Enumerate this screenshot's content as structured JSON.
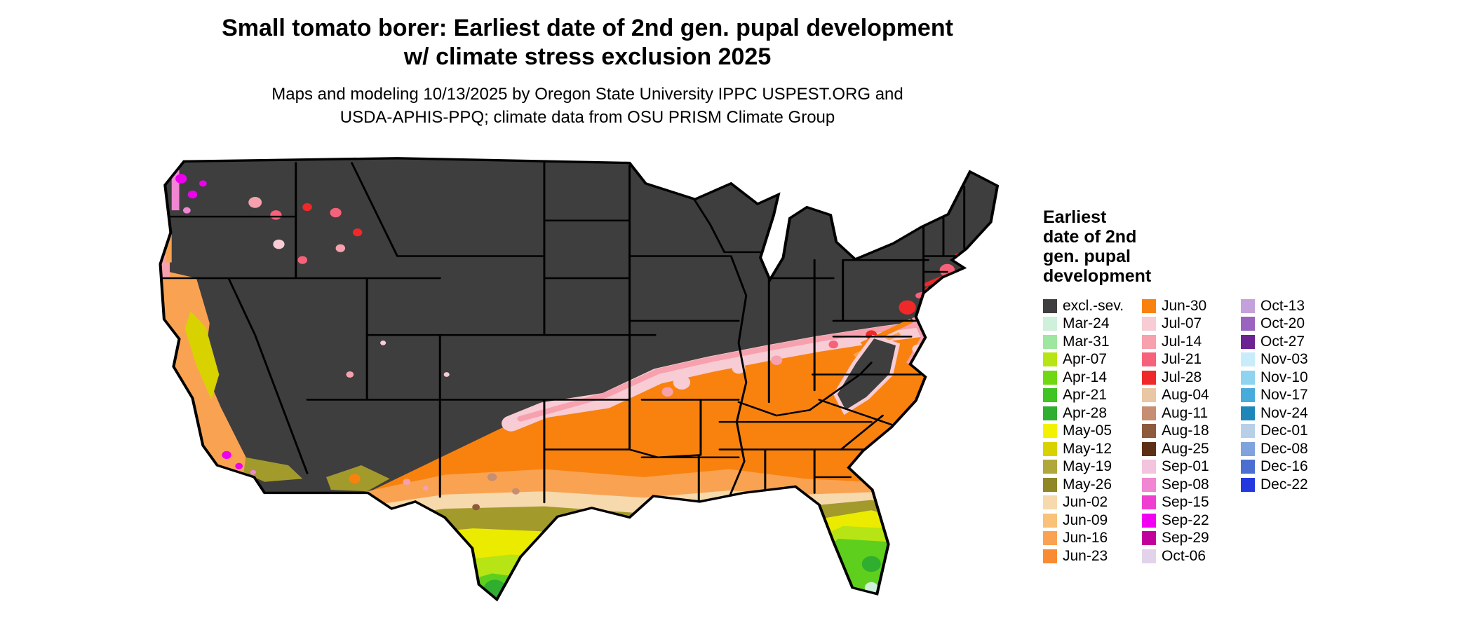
{
  "title": {
    "line1": "Small tomato borer: Earliest date of 2nd gen. pupal development",
    "line2": "w/ climate stress exclusion 2025"
  },
  "subtitle": {
    "line1": "Maps and modeling 10/13/2025 by Oregon State University IPPC USPEST.ORG and",
    "line2": "USDA-APHIS-PPQ; climate data from OSU PRISM Climate Group"
  },
  "map": {
    "type": "choropleth",
    "region": "contiguous-united-states",
    "excluded_color": "#3e3e3e"
  },
  "legend": {
    "title_lines": [
      "Earliest",
      "date of 2nd",
      "gen. pupal",
      "development"
    ],
    "columns": [
      {
        "items": [
          {
            "label": "excl.-sev.",
            "color": "#3e3e3e"
          },
          {
            "label": "Mar-24",
            "color": "#cff0da"
          },
          {
            "label": "Mar-31",
            "color": "#9fe6a0"
          },
          {
            "label": "Apr-07",
            "color": "#b7e414"
          },
          {
            "label": "Apr-14",
            "color": "#6fd812"
          },
          {
            "label": "Apr-21",
            "color": "#3fc421"
          },
          {
            "label": "Apr-28",
            "color": "#2fae2f"
          },
          {
            "label": "May-05",
            "color": "#f2f200"
          },
          {
            "label": "May-12",
            "color": "#d8d200"
          },
          {
            "label": "May-19",
            "color": "#b0a83a"
          },
          {
            "label": "May-26",
            "color": "#8f8626"
          },
          {
            "label": "Jun-02",
            "color": "#f6d9ac"
          },
          {
            "label": "Jun-09",
            "color": "#fac178"
          },
          {
            "label": "Jun-16",
            "color": "#f9a352"
          },
          {
            "label": "Jun-23",
            "color": "#f98c32"
          }
        ]
      },
      {
        "items": [
          {
            "label": "Jun-30",
            "color": "#f9820e"
          },
          {
            "label": "Jul-07",
            "color": "#f7ccd4"
          },
          {
            "label": "Jul-14",
            "color": "#f7a0ae"
          },
          {
            "label": "Jul-21",
            "color": "#f6627a"
          },
          {
            "label": "Jul-28",
            "color": "#ef2929"
          },
          {
            "label": "Aug-04",
            "color": "#e9c6a4"
          },
          {
            "label": "Aug-11",
            "color": "#c68e72"
          },
          {
            "label": "Aug-18",
            "color": "#8e5a3c"
          },
          {
            "label": "Aug-25",
            "color": "#5d3016"
          },
          {
            "label": "Sep-01",
            "color": "#f2c4dd"
          },
          {
            "label": "Sep-08",
            "color": "#f186d2"
          },
          {
            "label": "Sep-15",
            "color": "#ef3fd0"
          },
          {
            "label": "Sep-22",
            "color": "#f200f2"
          },
          {
            "label": "Sep-29",
            "color": "#c2009c"
          },
          {
            "label": "Oct-06",
            "color": "#e2d3ea"
          }
        ]
      },
      {
        "items": [
          {
            "label": "Oct-13",
            "color": "#c3a1da"
          },
          {
            "label": "Oct-20",
            "color": "#9a63c0"
          },
          {
            "label": "Oct-27",
            "color": "#6b2393"
          },
          {
            "label": "Nov-03",
            "color": "#c9ecfb"
          },
          {
            "label": "Nov-10",
            "color": "#8ed4f0"
          },
          {
            "label": "Nov-17",
            "color": "#48abdc"
          },
          {
            "label": "Nov-24",
            "color": "#1f86ba"
          },
          {
            "label": "Dec-01",
            "color": "#b9cfe7"
          },
          {
            "label": "Dec-08",
            "color": "#7fa3dc"
          },
          {
            "label": "Dec-16",
            "color": "#4a6fd1"
          },
          {
            "label": "Dec-22",
            "color": "#2438e0"
          }
        ]
      }
    ]
  }
}
